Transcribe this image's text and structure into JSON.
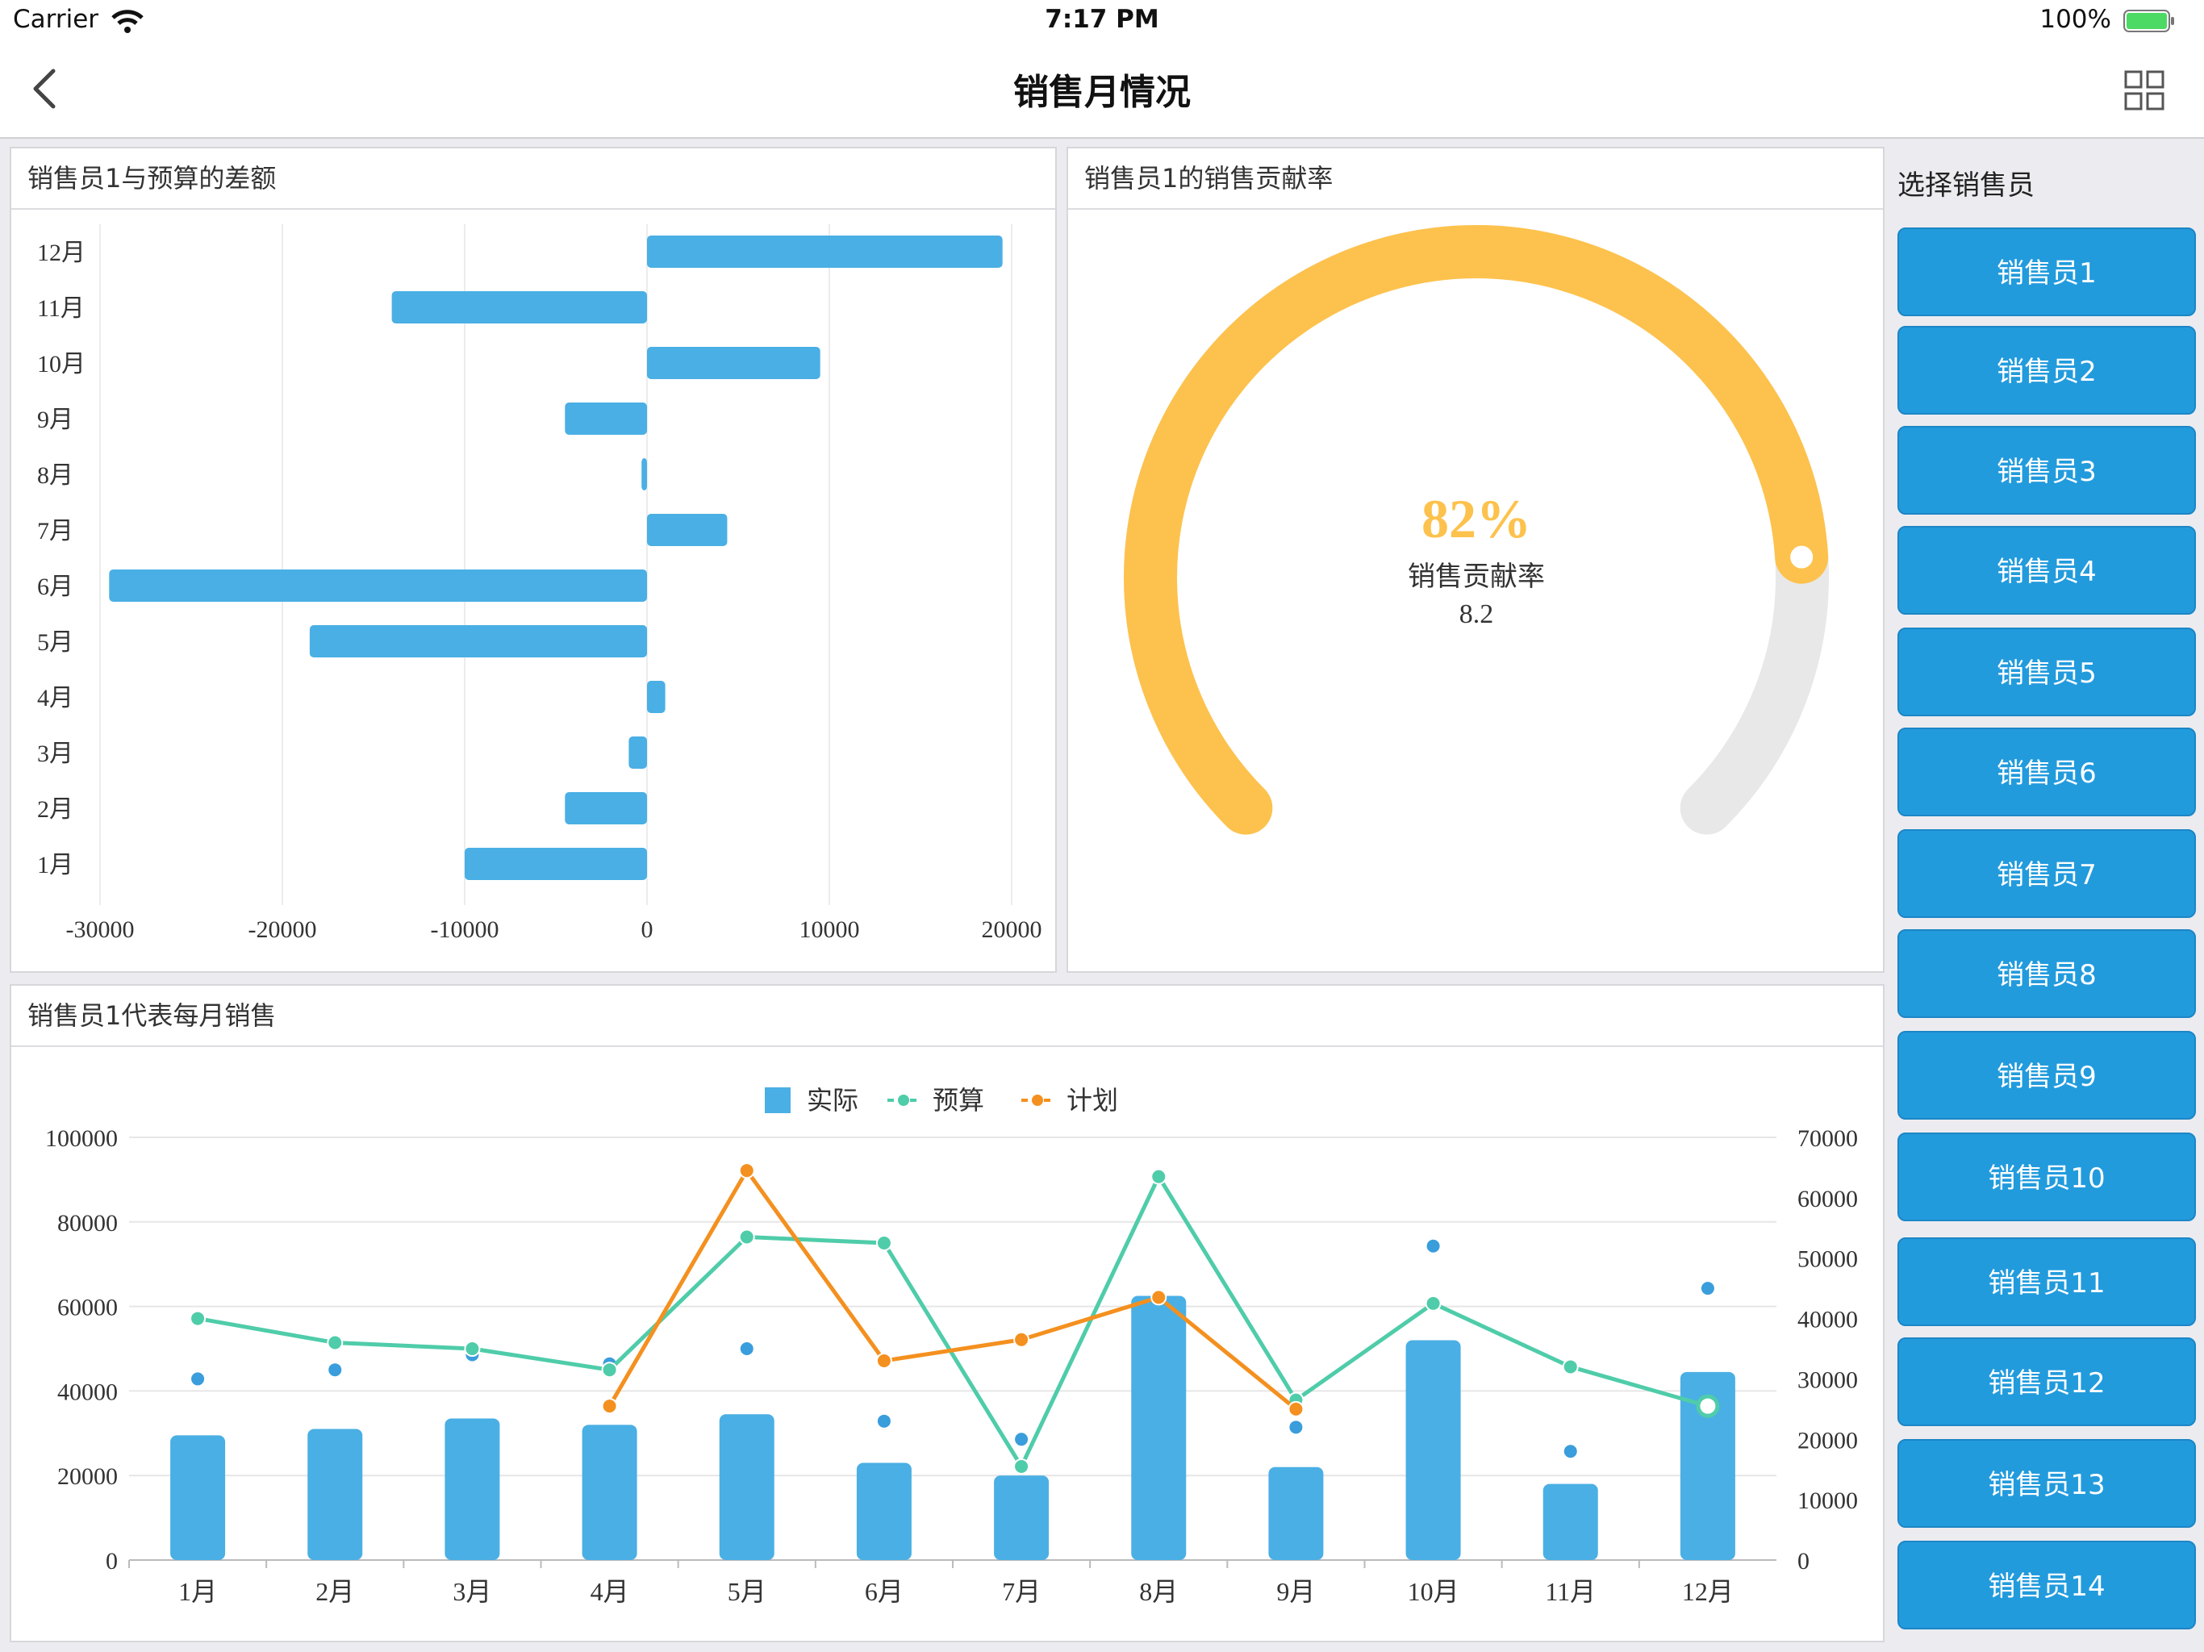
{
  "status_bar": {
    "carrier": "Carrier",
    "time": "7:17 PM",
    "battery": "100%"
  },
  "nav": {
    "title": "销售月情况"
  },
  "panels": {
    "diff_title": "销售员1与预算的差额",
    "rate_title": "销售员1的销售贡献率",
    "monthly_title": "销售员1代表每月销售"
  },
  "gauge": {
    "percent_text": "82%",
    "label": "销售贡献率",
    "value_text": "8.2",
    "fraction": 0.82,
    "color": "#fdc24d"
  },
  "sidebar": {
    "title": "选择销售员",
    "items": [
      "销售员1",
      "销售员2",
      "销售员3",
      "销售员4",
      "销售员5",
      "销售员6",
      "销售员7",
      "销售员8",
      "销售员9",
      "销售员10",
      "销售员11",
      "销售员12",
      "销售员13",
      "销售员14"
    ]
  },
  "chart_data": [
    {
      "type": "bar",
      "orientation": "horizontal",
      "categories": [
        "1月",
        "2月",
        "3月",
        "4月",
        "5月",
        "6月",
        "7月",
        "8月",
        "9月",
        "10月",
        "11月",
        "12月"
      ],
      "values": [
        -10000,
        -4500,
        -1000,
        1000,
        -18500,
        -29500,
        4400,
        -300,
        -4500,
        9500,
        -14000,
        19500
      ],
      "xlim": [
        -30000,
        20000
      ],
      "xticks": [
        -30000,
        -20000,
        -10000,
        0,
        10000,
        20000
      ],
      "color": "#4aafe4"
    },
    {
      "type": "bar",
      "categories": [
        "1月",
        "2月",
        "3月",
        "4月",
        "5月",
        "6月",
        "7月",
        "8月",
        "9月",
        "10月",
        "11月",
        "12月"
      ],
      "legend": [
        "实际",
        "预算",
        "计划"
      ],
      "ylim_left": [
        0,
        100000
      ],
      "yticks_left": [
        0,
        20000,
        40000,
        60000,
        80000,
        100000
      ],
      "ylim_right": [
        0,
        70000
      ],
      "yticks_right": [
        0,
        10000,
        20000,
        30000,
        40000,
        50000,
        60000,
        70000
      ],
      "series": [
        {
          "name": "实际",
          "type": "bar",
          "axis": "left",
          "color": "#4aafe4",
          "values": [
            29500,
            31000,
            33500,
            32000,
            34500,
            23000,
            20000,
            62500,
            22000,
            52000,
            18000,
            44500
          ]
        },
        {
          "name": "预算",
          "type": "line",
          "axis": "right",
          "color": "#4fcca9",
          "values": [
            40000,
            36000,
            35000,
            31500,
            53500,
            52500,
            15500,
            63500,
            26500,
            42500,
            32000,
            25500
          ]
        },
        {
          "name": "计划",
          "type": "line",
          "axis": "right",
          "color": "#f4901f",
          "values": [
            null,
            null,
            null,
            25500,
            64500,
            null,
            null,
            null,
            null,
            null,
            null,
            null
          ],
          "points": [
            [
              3,
              25500
            ],
            [
              4,
              64500
            ],
            [
              5,
              33000
            ],
            [
              6,
              36500
            ],
            [
              7,
              43500
            ],
            [
              8,
              25000
            ]
          ]
        }
      ],
      "markers": {
        "color": "#3a9ddc",
        "axis": "right",
        "values": [
          30000,
          31500,
          34000,
          32500,
          35000,
          23000,
          20000,
          43500,
          22000,
          52000,
          18000,
          45000
        ]
      }
    }
  ]
}
